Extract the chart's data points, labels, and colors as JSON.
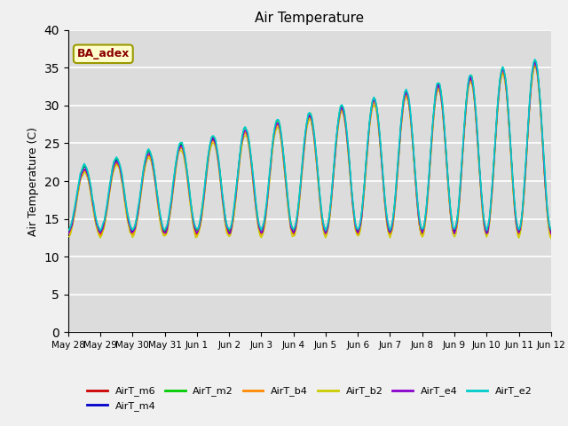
{
  "title": "Air Temperature",
  "ylabel": "Air Temperature (C)",
  "ylim": [
    0,
    40
  ],
  "plot_bg_color": "#dcdcdc",
  "fig_bg_color": "#f0f0f0",
  "grid_color": "white",
  "annotation_text": "BA_adex",
  "annotation_bg": "#ffffcc",
  "annotation_fg": "#8b0000",
  "annotation_edge": "#999900",
  "series_colors": {
    "AirT_m6": "#cc0000",
    "AirT_m4": "#0000cc",
    "AirT_m2": "#00cc00",
    "AirT_b4": "#ff8800",
    "AirT_b2": "#cccc00",
    "AirT_e4": "#8800cc",
    "AirT_e2": "#00cccc"
  },
  "series_order": [
    "AirT_m6",
    "AirT_m4",
    "AirT_m2",
    "AirT_b4",
    "AirT_b2",
    "AirT_e4",
    "AirT_e2"
  ],
  "tick_labels": [
    "May 28",
    "May 29",
    "May 30",
    "May 31",
    "Jun 1",
    "Jun 2",
    "Jun 3",
    "Jun 4",
    "Jun 5",
    "Jun 6",
    "Jun 7",
    "Jun 8",
    "Jun 9",
    "Jun 10",
    "Jun 11",
    "Jun 12"
  ],
  "yticks": [
    0,
    5,
    10,
    15,
    20,
    25,
    30,
    35,
    40
  ]
}
